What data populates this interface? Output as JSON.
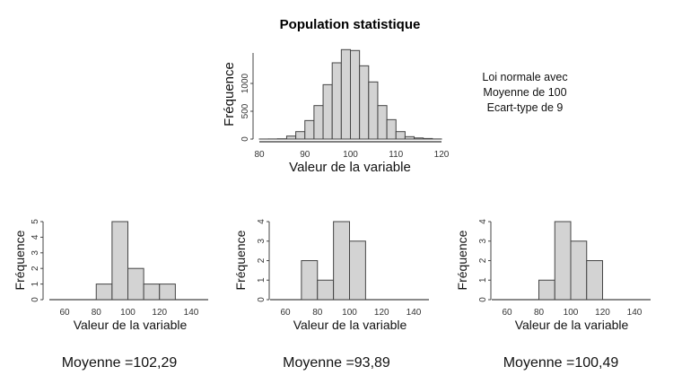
{
  "annotation": [
    "Loi normale avec",
    "Moyenne de 100",
    "Ecart-type de 9"
  ],
  "means": [
    "Moyenne =102,29",
    "Moyenne =93,89",
    "Moyenne =100,49"
  ],
  "chart_data": [
    {
      "type": "bar",
      "title": "Population statistique",
      "xlabel": "Valeur de la variable",
      "ylabel": "Fréquence",
      "bin_edges": [
        80,
        82,
        84,
        86,
        88,
        90,
        92,
        94,
        96,
        98,
        100,
        102,
        104,
        106,
        108,
        110,
        112,
        114,
        116,
        118,
        120
      ],
      "values": [
        1,
        2,
        5,
        54,
        134,
        333,
        602,
        978,
        1371,
        1608,
        1592,
        1317,
        1027,
        602,
        349,
        134,
        43,
        20,
        10,
        2
      ],
      "xticks": [
        80,
        90,
        100,
        110,
        120
      ],
      "yticks": [
        0,
        500,
        1000
      ],
      "xlim": [
        80,
        120
      ],
      "ylim": [
        0,
        1550
      ],
      "fill": "#d3d3d3"
    },
    {
      "type": "bar",
      "xlabel": "Valeur de la variable",
      "ylabel": "Fréquence",
      "bin_edges": [
        80,
        90,
        100,
        110,
        120,
        130
      ],
      "values": [
        1,
        5,
        2,
        1,
        1
      ],
      "xticks": [
        60,
        80,
        100,
        120,
        140
      ],
      "yticks": [
        0,
        1,
        2,
        3,
        4,
        5
      ],
      "xlim": [
        55,
        150
      ],
      "ylim": [
        0,
        5
      ],
      "fill": "#d3d3d3"
    },
    {
      "type": "bar",
      "xlabel": "Valeur de la variable",
      "ylabel": "Fréquence",
      "bin_edges": [
        70,
        80,
        90,
        100,
        110
      ],
      "values": [
        2,
        1,
        4,
        3
      ],
      "xticks": [
        60,
        80,
        100,
        120,
        140
      ],
      "yticks": [
        0,
        1,
        2,
        3,
        4
      ],
      "xlim": [
        55,
        150
      ],
      "ylim": [
        0,
        4
      ],
      "fill": "#d3d3d3"
    },
    {
      "type": "bar",
      "xlabel": "Valeur de la variable",
      "ylabel": "Fréquence",
      "bin_edges": [
        80,
        90,
        100,
        110,
        120
      ],
      "values": [
        1,
        4,
        3,
        2
      ],
      "xticks": [
        60,
        80,
        100,
        120,
        140
      ],
      "yticks": [
        0,
        1,
        2,
        3,
        4
      ],
      "xlim": [
        55,
        150
      ],
      "ylim": [
        0,
        4
      ],
      "fill": "#d3d3d3"
    }
  ]
}
